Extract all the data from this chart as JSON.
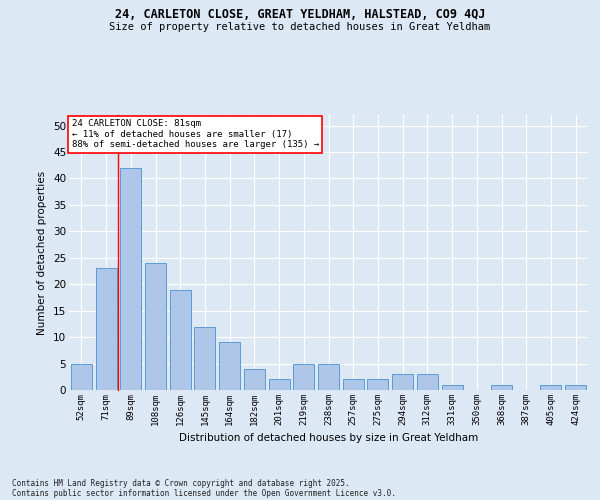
{
  "title_line1": "24, CARLETON CLOSE, GREAT YELDHAM, HALSTEAD, CO9 4QJ",
  "title_line2": "Size of property relative to detached houses in Great Yeldham",
  "xlabel": "Distribution of detached houses by size in Great Yeldham",
  "ylabel": "Number of detached properties",
  "categories": [
    "52sqm",
    "71sqm",
    "89sqm",
    "108sqm",
    "126sqm",
    "145sqm",
    "164sqm",
    "182sqm",
    "201sqm",
    "219sqm",
    "238sqm",
    "257sqm",
    "275sqm",
    "294sqm",
    "312sqm",
    "331sqm",
    "350sqm",
    "368sqm",
    "387sqm",
    "405sqm",
    "424sqm"
  ],
  "values": [
    5,
    23,
    42,
    24,
    19,
    12,
    9,
    4,
    2,
    5,
    5,
    2,
    2,
    3,
    3,
    1,
    0,
    1,
    0,
    1,
    1
  ],
  "bar_color": "#aec6e8",
  "bar_edge_color": "#5b9bd5",
  "annotation_line1": "24 CARLETON CLOSE: 81sqm",
  "annotation_line2": "← 11% of detached houses are smaller (17)",
  "annotation_line3": "88% of semi-detached houses are larger (135) →",
  "vline_x": 1.5,
  "bg_color": "#dde8f5",
  "plot_bg_color": "#dde8f5",
  "grid_color": "#ffffff",
  "footer_line1": "Contains HM Land Registry data © Crown copyright and database right 2025.",
  "footer_line2": "Contains public sector information licensed under the Open Government Licence v3.0.",
  "ylim": [
    0,
    52
  ],
  "yticks": [
    0,
    5,
    10,
    15,
    20,
    25,
    30,
    35,
    40,
    45,
    50
  ]
}
